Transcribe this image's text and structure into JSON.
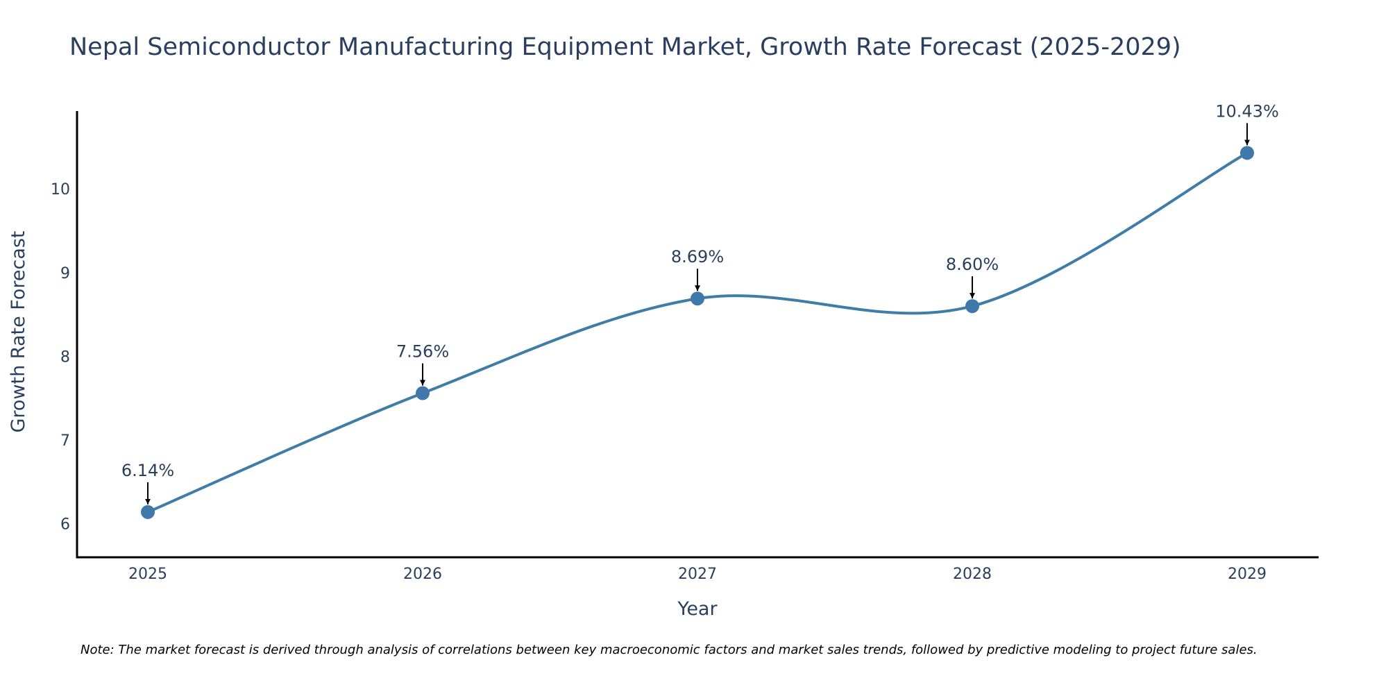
{
  "chart_data": {
    "type": "line",
    "title": "Nepal Semiconductor Manufacturing Equipment Market, Growth Rate Forecast (2025-2029)",
    "xlabel": "Year",
    "ylabel": "Growth Rate Forecast",
    "categories": [
      "2025",
      "2026",
      "2027",
      "2028",
      "2029"
    ],
    "values": [
      6.14,
      7.56,
      8.69,
      8.6,
      10.43
    ],
    "labels": [
      "6.14%",
      "7.56%",
      "8.69%",
      "8.60%",
      "10.43%"
    ],
    "yticks": [
      6,
      7,
      8,
      9,
      10
    ],
    "ylim": [
      5.6,
      10.93
    ],
    "grid": false,
    "legend": "none",
    "line_shape": "spline",
    "note": "Note: The market forecast is derived through analysis of correlations between key macroeconomic factors and market sales trends, followed by predictive modeling to project future sales."
  },
  "colors": {
    "series": "#3f7ca8",
    "marker": "#4178ab",
    "axis": "#000000",
    "text": "#2a3f5f",
    "arrow": "#000000"
  }
}
